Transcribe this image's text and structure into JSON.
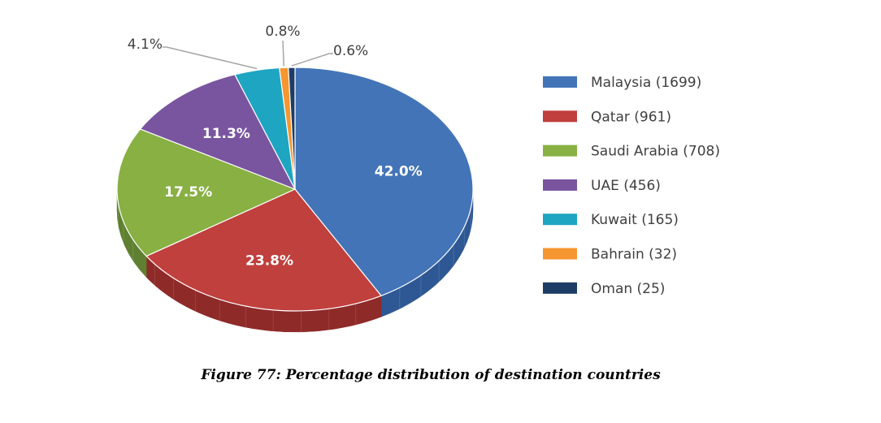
{
  "chart_data": {
    "type": "pie",
    "style": "3d",
    "legend_position": "right",
    "slices": [
      {
        "name": "Malaysia (1699)",
        "value": 42.0,
        "label": "42.0%",
        "color": "#4374b7",
        "side_color": "#2e5894",
        "label_inside": true
      },
      {
        "name": "Qatar (961)",
        "value": 23.8,
        "label": "23.8%",
        "color": "#c0403e",
        "side_color": "#8e2a28",
        "label_inside": true
      },
      {
        "name": "Saudi Arabia (708)",
        "value": 17.5,
        "label": "17.5%",
        "color": "#88b043",
        "side_color": "#5f8030",
        "label_inside": true
      },
      {
        "name": "UAE (456)",
        "value": 11.3,
        "label": "11.3%",
        "color": "#7955a0",
        "side_color": "#563a78",
        "label_inside": true
      },
      {
        "name": "Kuwait (165)",
        "value": 4.1,
        "label": "4.1%",
        "color": "#1ea5c1",
        "side_color": "#14788f",
        "label_inside": false
      },
      {
        "name": "Bahrain (32)",
        "value": 0.8,
        "label": "0.8%",
        "color": "#f59630",
        "side_color": "#b86c1c",
        "label_inside": false
      },
      {
        "name": "Oman (25)",
        "value": 0.6,
        "label": "0.6%",
        "color": "#1e3d66",
        "side_color": "#13294a",
        "label_inside": false
      }
    ]
  },
  "caption": "Figure 77: Percentage distribution of destination countries"
}
